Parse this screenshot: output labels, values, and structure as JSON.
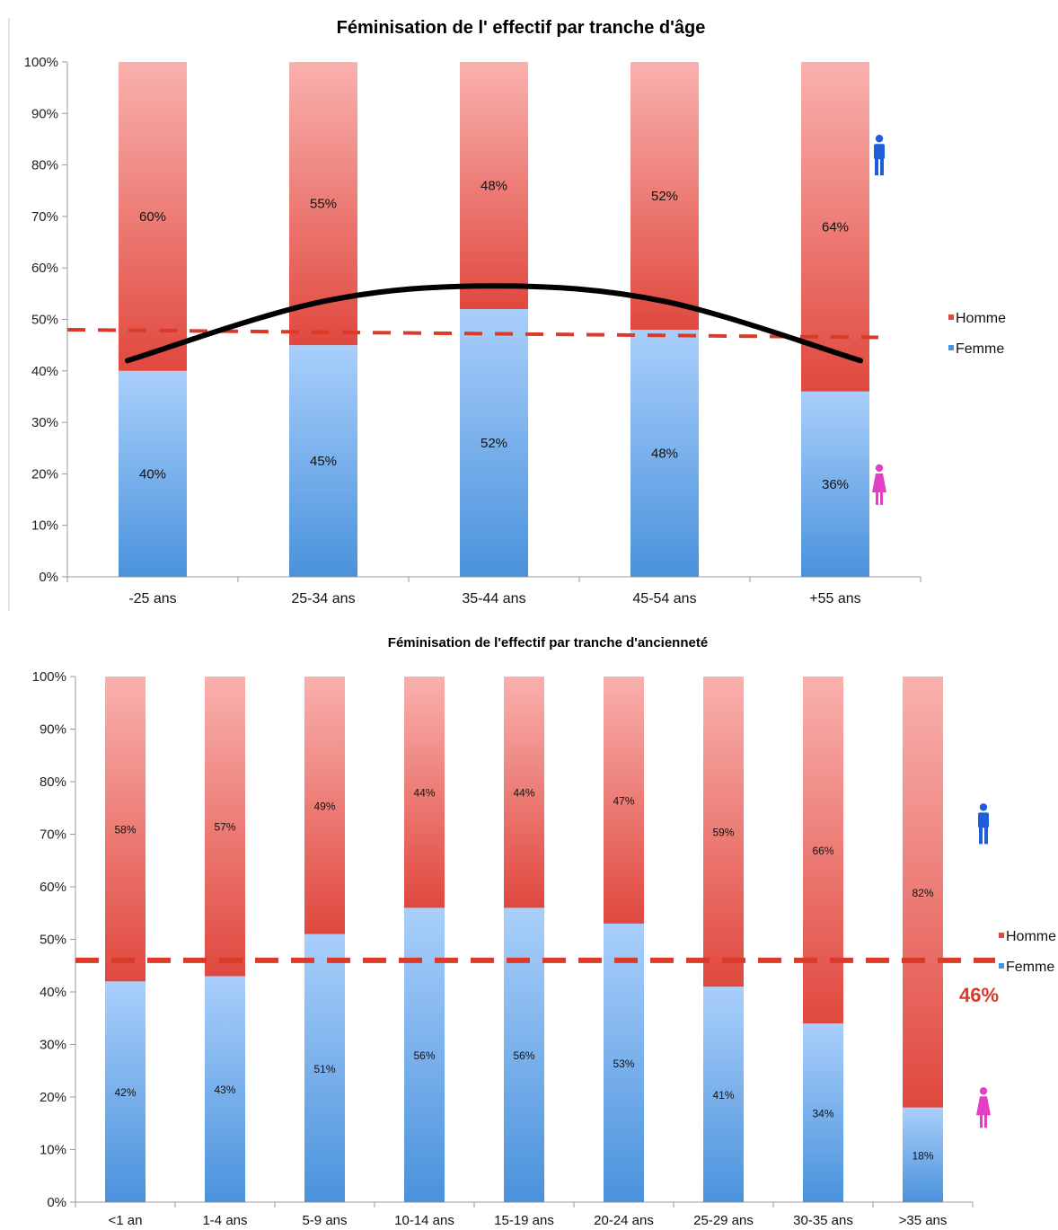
{
  "colors": {
    "homme_light": "#f9b1ae",
    "homme_dark": "#e0483e",
    "femme_light": "#a9cffb",
    "femme_dark": "#4a92dc",
    "average_line": "#d93a2a",
    "trend_line": "#000000",
    "man_icon": "#1f5ed8",
    "woman_icon": "#e23fc4"
  },
  "chart_data": [
    {
      "type": "bar",
      "stacked": true,
      "title": "Féminisation de l' effectif par tranche d'âge",
      "categories": [
        "-25 ans",
        "25-34 ans",
        "35-44 ans",
        "45-54 ans",
        "+55 ans"
      ],
      "series": [
        {
          "name": "Homme",
          "values": [
            60,
            55,
            48,
            52,
            64
          ]
        },
        {
          "name": "Femme",
          "values": [
            40,
            45,
            52,
            48,
            36
          ]
        }
      ],
      "value_labels": {
        "Homme": [
          "60%",
          "55%",
          "48%",
          "52%",
          "64%"
        ],
        "Femme": [
          "40%",
          "45%",
          "52%",
          "48%",
          "36%"
        ]
      },
      "ylim": [
        0,
        100
      ],
      "yticks": [
        "0%",
        "10%",
        "20%",
        "30%",
        "40%",
        "50%",
        "60%",
        "70%",
        "80%",
        "90%",
        "100%"
      ],
      "legend": [
        "Homme",
        "Femme"
      ],
      "legend_position": "right",
      "reference_line": {
        "style": "dashed",
        "from": 48,
        "to": 46.5
      },
      "trend_curve": {
        "style": "solid",
        "values": [
          42,
          53.5,
          56.5,
          53.5,
          42
        ]
      },
      "icons": [
        "man-icon",
        "woman-icon"
      ]
    },
    {
      "type": "bar",
      "stacked": true,
      "title": "Féminisation de l'effectif par tranche d'ancienneté",
      "categories": [
        "<1 an",
        "1-4 ans",
        "5-9 ans",
        "10-14 ans",
        "15-19 ans",
        "20-24 ans",
        "25-29 ans",
        "30-35 ans",
        ">35 ans"
      ],
      "series": [
        {
          "name": "Homme",
          "values": [
            58,
            57,
            49,
            44,
            44,
            47,
            59,
            66,
            82
          ]
        },
        {
          "name": "Femme",
          "values": [
            42,
            43,
            51,
            56,
            56,
            53,
            41,
            34,
            18
          ]
        }
      ],
      "value_labels": {
        "Homme": [
          "58%",
          "57%",
          "49%",
          "44%",
          "44%",
          "47%",
          "59%",
          "66%",
          "82%"
        ],
        "Femme": [
          "42%",
          "43%",
          "51%",
          "56%",
          "56%",
          "53%",
          "41%",
          "34%",
          "18%"
        ]
      },
      "ylim": [
        0,
        100
      ],
      "yticks": [
        "0%",
        "10%",
        "20%",
        "30%",
        "40%",
        "50%",
        "60%",
        "70%",
        "80%",
        "90%",
        "100%"
      ],
      "legend": [
        "Homme",
        "Femme"
      ],
      "legend_position": "right",
      "reference_line": {
        "style": "dashed",
        "value": 46,
        "label": "46%"
      },
      "icons": [
        "man-icon",
        "woman-icon"
      ]
    }
  ]
}
